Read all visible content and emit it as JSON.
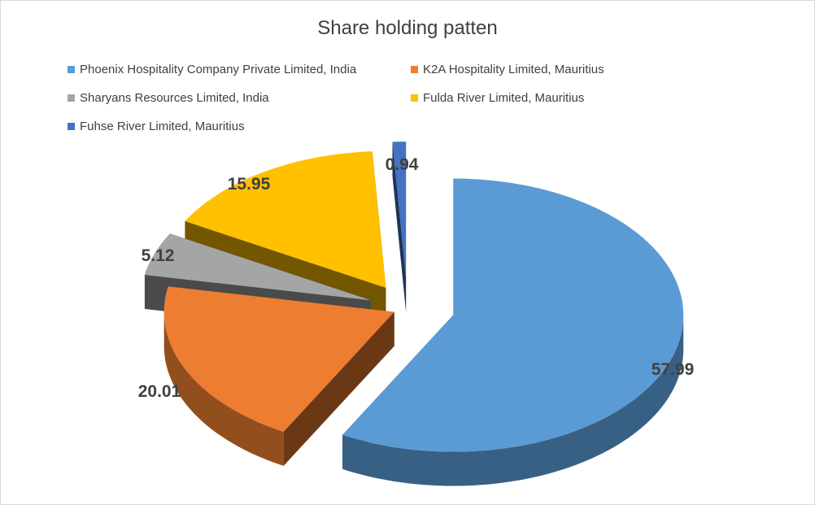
{
  "chart_data": {
    "type": "pie",
    "title": "Share holding patten",
    "slices": [
      {
        "name": "Phoenix Hospitality Company Private Limited, India",
        "value": 57.99,
        "label": "57.99",
        "color": "#5b9bd5"
      },
      {
        "name": "K2A Hospitality Limited, Mauritius",
        "value": 20.01,
        "label": "20.01",
        "color": "#ed7d31"
      },
      {
        "name": "Sharyans Resources Limited, India",
        "value": 5.12,
        "label": "5.12",
        "color": "#a5a5a5"
      },
      {
        "name": "Fulda River Limited, Mauritius",
        "value": 15.95,
        "label": "15.95",
        "color": "#ffc000"
      },
      {
        "name": "Fuhse River Limited, Mauritius",
        "value": 0.94,
        "label": "0.94",
        "color": "#4472c4"
      }
    ],
    "legend_position": "top",
    "style": "3d-exploded"
  }
}
